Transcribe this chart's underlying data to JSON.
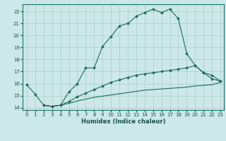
{
  "xlabel": "Humidex (Indice chaleur)",
  "bg_color": "#cce8e8",
  "grid_color": "#aacccc",
  "line_color": "#1a6b5a",
  "xlim": [
    -0.5,
    23.4
  ],
  "ylim": [
    13.8,
    22.6
  ],
  "yticks": [
    14,
    15,
    16,
    17,
    18,
    19,
    20,
    21,
    22
  ],
  "xticks": [
    0,
    1,
    2,
    3,
    4,
    5,
    6,
    7,
    8,
    9,
    10,
    11,
    12,
    13,
    14,
    15,
    16,
    17,
    18,
    19,
    20,
    21,
    22,
    23
  ],
  "curve1_x": [
    0,
    1,
    2,
    3,
    4,
    5,
    6,
    7,
    8,
    9,
    10,
    11,
    12,
    13,
    14,
    15,
    16,
    17,
    18,
    19,
    20,
    21,
    22,
    23
  ],
  "curve1_y": [
    15.9,
    15.1,
    14.2,
    14.1,
    14.2,
    15.3,
    16.0,
    17.3,
    17.3,
    19.1,
    19.9,
    20.8,
    21.0,
    21.6,
    21.9,
    22.2,
    21.9,
    22.2,
    21.4,
    18.5,
    17.5,
    16.9,
    16.4,
    16.2
  ],
  "curve2_x": [
    2,
    3,
    4,
    5,
    6,
    7,
    8,
    9,
    10,
    11,
    12,
    13,
    14,
    15,
    16,
    17,
    18,
    19,
    20,
    21,
    22,
    23
  ],
  "curve2_y": [
    14.2,
    14.1,
    14.2,
    14.5,
    14.9,
    15.2,
    15.5,
    15.8,
    16.1,
    16.3,
    16.5,
    16.7,
    16.8,
    16.9,
    17.0,
    17.1,
    17.2,
    17.3,
    17.5,
    16.9,
    16.7,
    16.2
  ],
  "curve3_x": [
    2,
    3,
    4,
    5,
    6,
    7,
    8,
    9,
    10,
    11,
    12,
    13,
    14,
    15,
    16,
    17,
    18,
    19,
    20,
    21,
    22,
    23
  ],
  "curve3_y": [
    14.2,
    14.1,
    14.2,
    14.35,
    14.55,
    14.7,
    14.85,
    14.95,
    15.05,
    15.15,
    15.25,
    15.35,
    15.45,
    15.5,
    15.55,
    15.6,
    15.65,
    15.7,
    15.8,
    15.85,
    15.9,
    16.1
  ]
}
